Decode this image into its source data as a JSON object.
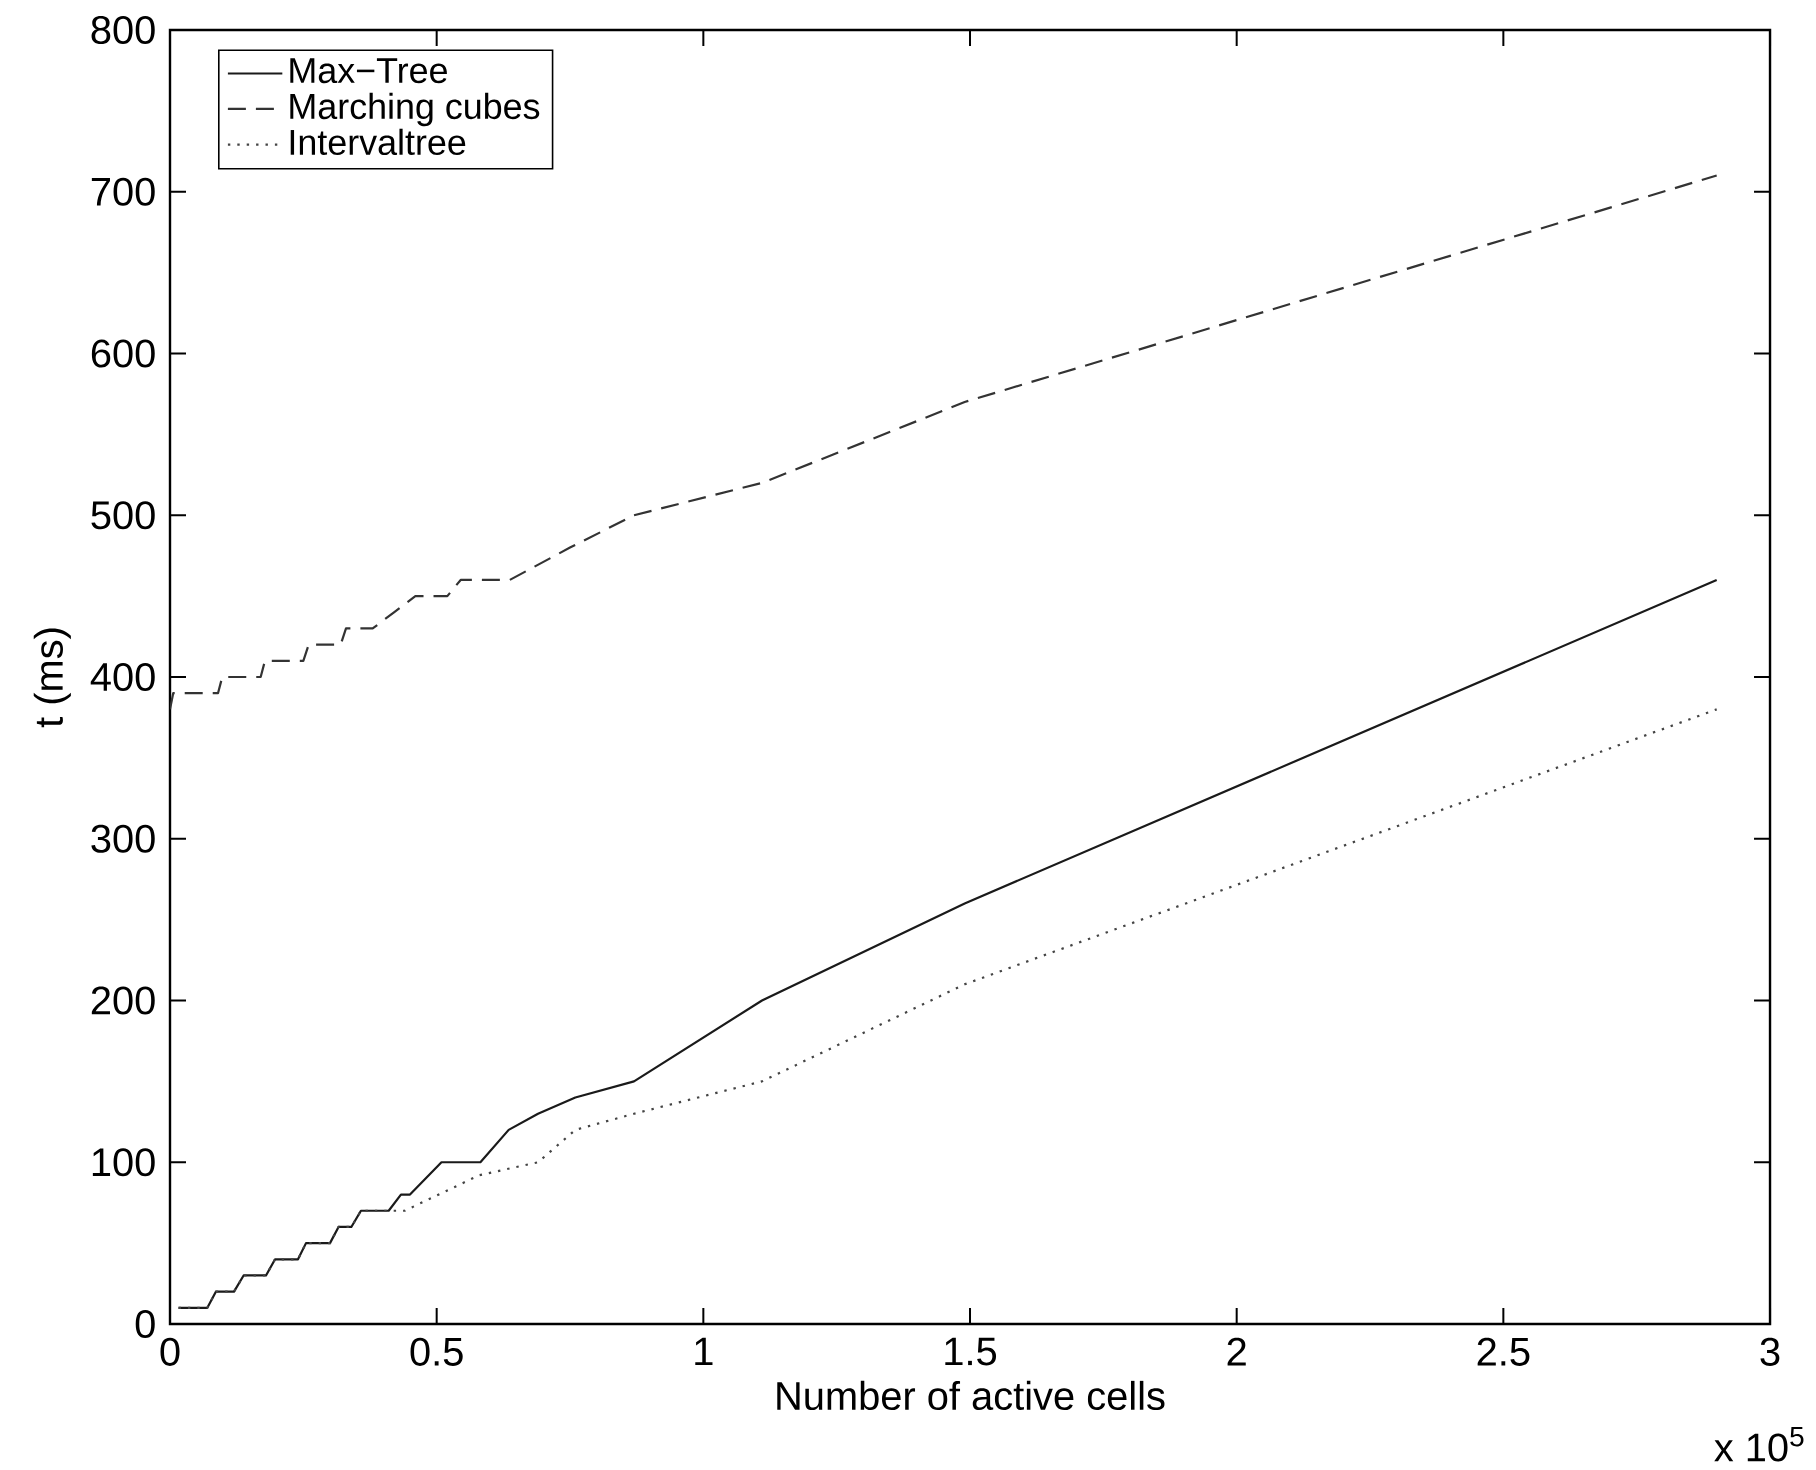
{
  "chart_data": {
    "type": "line",
    "xlabel": "Number of active cells",
    "ylabel": "t (ms)",
    "annotations": [
      "x 10$^{5}$"
    ],
    "xlim": [
      0,
      3
    ],
    "xticks": [
      0,
      0.5,
      1,
      1.5,
      2,
      2.5,
      3
    ],
    "ylim": [
      0,
      800
    ],
    "yticks": [
      0,
      100,
      200,
      300,
      400,
      500,
      600,
      700,
      800
    ],
    "legend": "top left",
    "grid": false,
    "series": [
      {
        "name": "Max−Tree",
        "color": "#1a1a1a",
        "line_style": "solid",
        "x": [
          0.016,
          0.07,
          0.086,
          0.12,
          0.138,
          0.18,
          0.197,
          0.24,
          0.255,
          0.3,
          0.316,
          0.34,
          0.358,
          0.41,
          0.433,
          0.45,
          0.509,
          0.582,
          0.635,
          0.69,
          0.76,
          0.87,
          1.11,
          1.49,
          2.9
        ],
        "values": [
          10,
          10,
          20,
          20,
          30,
          30,
          40,
          40,
          50,
          50,
          60,
          60,
          70,
          70,
          80,
          80,
          100,
          100,
          120,
          130,
          140,
          150,
          200,
          260,
          460
        ]
      },
      {
        "name": "Marching cubes",
        "color": "#333333",
        "line_style": "dashed",
        "x": [
          0,
          0.006,
          0.09,
          0.098,
          0.17,
          0.178,
          0.25,
          0.26,
          0.32,
          0.33,
          0.38,
          0.42,
          0.46,
          0.52,
          0.545,
          0.637,
          0.75,
          0.87,
          1.11,
          1.49,
          2.9
        ],
        "values": [
          380,
          390,
          390,
          400,
          400,
          410,
          410,
          420,
          420,
          430,
          430,
          440,
          450,
          450,
          460,
          460,
          480,
          500,
          520,
          570,
          710
        ]
      },
      {
        "name": "Intervaltree",
        "color": "#444444",
        "line_style": "dotted",
        "x": [
          0.016,
          0.07,
          0.086,
          0.12,
          0.138,
          0.18,
          0.197,
          0.24,
          0.255,
          0.3,
          0.316,
          0.34,
          0.358,
          0.44,
          0.58,
          0.69,
          0.76,
          0.87,
          1.11,
          1.49,
          2.9
        ],
        "values": [
          10,
          10,
          20,
          20,
          30,
          30,
          40,
          40,
          50,
          50,
          60,
          60,
          70,
          70,
          92,
          100,
          120,
          130,
          150,
          210,
          380
        ]
      }
    ]
  }
}
